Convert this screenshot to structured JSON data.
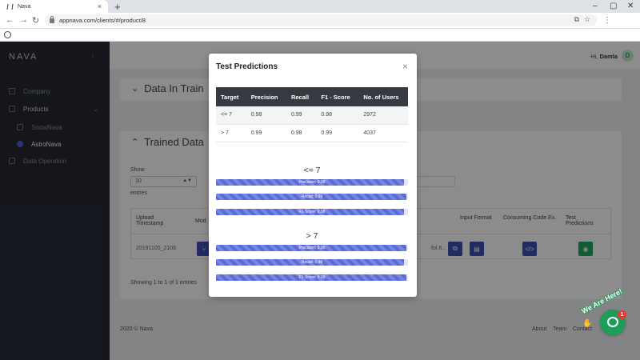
{
  "browser": {
    "tab_title": "Nava",
    "new_tab": "+",
    "url": "appnava.com/clients/#/product/8",
    "controls": {
      "minimize": "–",
      "maximize": "▢",
      "close": "✕"
    }
  },
  "sidebar": {
    "brand": "NAVA",
    "items": [
      {
        "label": "Company"
      },
      {
        "label": "Products"
      },
      {
        "label": "SnowNava"
      },
      {
        "label": "AstroNava"
      },
      {
        "label": "Data Operation"
      }
    ]
  },
  "header": {
    "greeting": "Hi,",
    "user_name": "Damla",
    "avatar_initial": "D"
  },
  "sections": {
    "data_in_training": {
      "title": "Data In Train"
    },
    "trained_data": {
      "title": "Trained Data",
      "show_label": "Show",
      "page_size": "10",
      "entries_label": "entries",
      "columns": [
        "Upload Timestamp",
        "Mod",
        "Input Format",
        "Consuming Code Ex.",
        "Test Predictions"
      ],
      "row": {
        "timestamp": "20191105_2106",
        "model_name_fragment": "fol.6..."
      },
      "showing_text": "Showing 1 to 1 of 1 entries"
    }
  },
  "footer": {
    "copyright": "2020 © Nava",
    "links": [
      "About",
      "Team",
      "Contact"
    ]
  },
  "modal": {
    "title": "Test Predictions",
    "close": "×",
    "table": {
      "headers": [
        "Target",
        "Precision",
        "Recall",
        "F1 - Score",
        "No. of Users"
      ],
      "rows": [
        [
          "<= 7",
          "0.98",
          "0.99",
          "0.98",
          "2972"
        ],
        [
          "> 7",
          "0.99",
          "0.98",
          "0.99",
          "4037"
        ]
      ]
    },
    "groups": [
      {
        "label": "<= 7",
        "bars": [
          {
            "label": "Precision: 0.98",
            "value": 0.98
          },
          {
            "label": "Recall: 0.99",
            "value": 0.99
          },
          {
            "label": "F1-Score: 0.98",
            "value": 0.98
          }
        ]
      },
      {
        "label": "> 7",
        "bars": [
          {
            "label": "Precision: 0.99",
            "value": 0.99
          },
          {
            "label": "Recall: 0.98",
            "value": 0.98
          },
          {
            "label": "F1-Score: 0.99",
            "value": 0.99
          }
        ]
      }
    ]
  },
  "chat": {
    "tag": "We Are Here!",
    "badge": "1"
  }
}
